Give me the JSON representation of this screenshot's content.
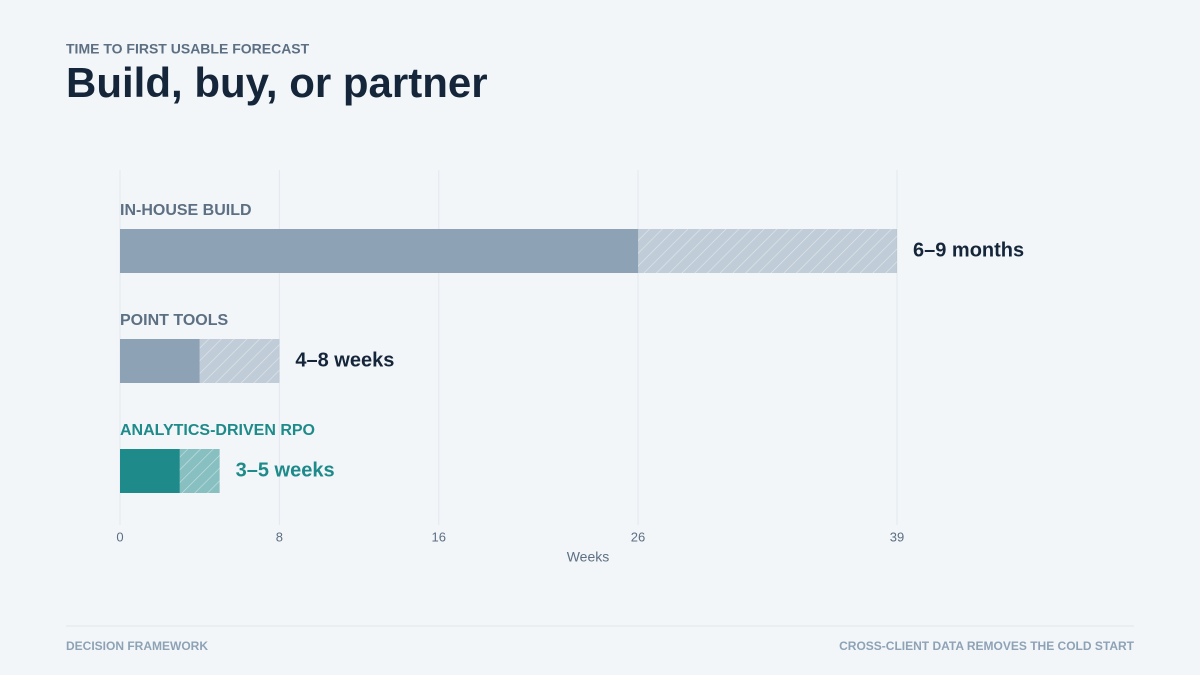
{
  "chart_data": {
    "type": "range-bar",
    "eyebrow": "TIME TO FIRST USABLE FORECAST",
    "title": "Build, buy, or partner",
    "x_label": "Weeks",
    "categories": [
      "IN-HOUSE BUILD",
      "POINT TOOLS",
      "ANALYTICS-DRIVEN RPO"
    ],
    "low": [
      26,
      4,
      3
    ],
    "high": [
      39,
      8,
      5
    ],
    "value_labels": [
      "6–9 months",
      "4–8 weeks",
      "3–5 weeks"
    ],
    "colors": [
      "#8ea2b6",
      "#8ea2b6",
      "#1e8a8a"
    ],
    "label_colors": [
      "#5d6f82",
      "#5d6f82",
      "#1e8a8a"
    ],
    "value_label_colors": [
      "#16263a",
      "#16263a",
      "#1e8a8a"
    ],
    "xlim": [
      0,
      39
    ],
    "xticks": [
      0,
      8,
      16,
      26,
      39
    ],
    "grid": true
  },
  "footer": {
    "left": "DECISION FRAMEWORK",
    "right": "CROSS-CLIENT DATA REMOVES THE COLD START"
  }
}
